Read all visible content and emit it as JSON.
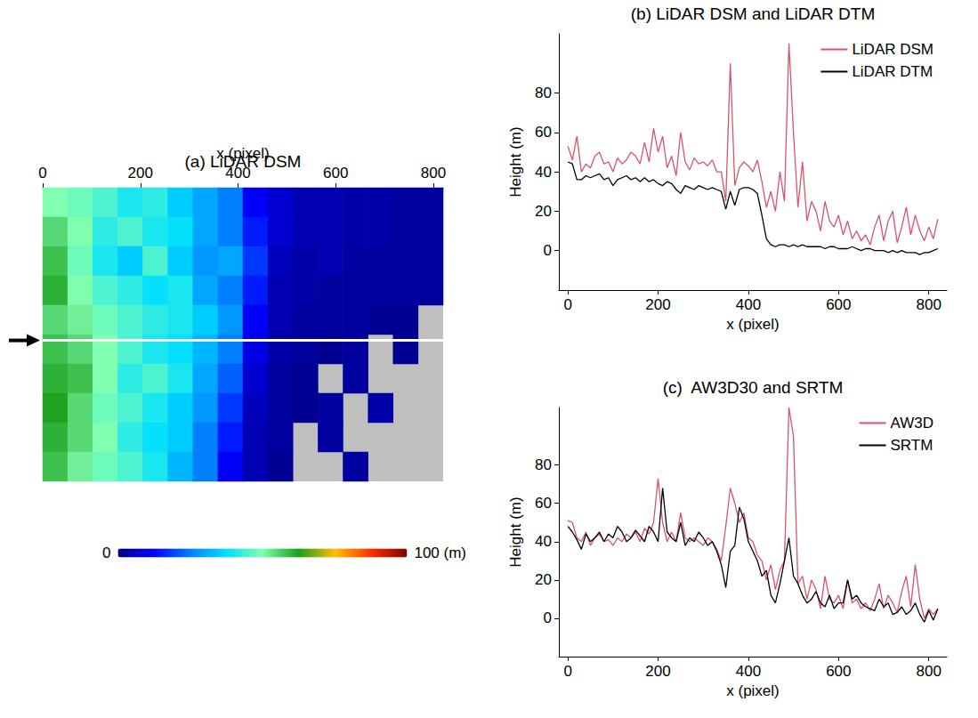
{
  "chart_data": [
    {
      "type": "heatmap",
      "title": "(a) LiDAR DSM",
      "xlabel": "x (pixel)",
      "xlim": [
        0,
        820
      ],
      "xticks": [
        0,
        200,
        400,
        600,
        800
      ],
      "tick_labels": "x",
      "color_ticks": [
        0,
        {
          "value": 100,
          "label": "100 (m)"
        }
      ],
      "cells": [
        [
          50,
          48,
          45,
          40,
          42,
          35,
          30,
          25,
          12,
          8,
          5,
          5,
          4,
          4,
          3,
          3
        ],
        [
          55,
          50,
          42,
          45,
          40,
          38,
          30,
          25,
          15,
          8,
          5,
          5,
          4,
          4,
          3,
          3
        ],
        [
          58,
          48,
          40,
          35,
          45,
          35,
          28,
          30,
          18,
          6,
          4,
          5,
          3,
          3,
          3,
          3
        ],
        [
          60,
          50,
          45,
          42,
          38,
          40,
          30,
          25,
          15,
          5,
          4,
          3,
          3,
          3,
          3,
          3
        ],
        [
          55,
          52,
          48,
          45,
          42,
          40,
          35,
          28,
          12,
          5,
          3,
          3,
          3,
          2,
          2,
          null
        ],
        [
          58,
          55,
          50,
          45,
          40,
          38,
          32,
          25,
          10,
          4,
          3,
          2,
          3,
          null,
          2,
          null
        ],
        [
          60,
          58,
          50,
          42,
          45,
          40,
          30,
          22,
          8,
          3,
          2,
          null,
          3,
          null,
          null,
          null
        ],
        [
          62,
          55,
          48,
          45,
          40,
          35,
          28,
          18,
          6,
          3,
          2,
          3,
          null,
          4,
          null,
          null
        ],
        [
          60,
          55,
          50,
          42,
          38,
          35,
          25,
          15,
          5,
          3,
          null,
          3,
          null,
          null,
          null,
          null
        ],
        [
          58,
          52,
          48,
          45,
          40,
          32,
          25,
          12,
          5,
          2,
          null,
          null,
          3,
          null,
          null,
          null
        ]
      ]
    },
    {
      "type": "line",
      "title": "(b) LiDAR DSM and LiDAR DTM",
      "xlabel": "x (pixel)",
      "ylabel": "Height (m)",
      "xlim": [
        -20,
        840
      ],
      "ylim": [
        -20,
        110
      ],
      "xticks": [
        0,
        200,
        400,
        600,
        800
      ],
      "yticks": [
        0,
        20,
        40,
        60,
        80
      ],
      "legend": "top-right",
      "x": [
        0,
        10,
        20,
        30,
        40,
        50,
        60,
        70,
        80,
        90,
        100,
        110,
        120,
        130,
        140,
        150,
        160,
        170,
        180,
        190,
        200,
        210,
        220,
        230,
        240,
        250,
        260,
        270,
        280,
        290,
        300,
        310,
        320,
        330,
        340,
        350,
        360,
        370,
        380,
        390,
        400,
        410,
        420,
        430,
        440,
        450,
        460,
        470,
        480,
        490,
        500,
        510,
        520,
        530,
        540,
        550,
        560,
        570,
        580,
        590,
        600,
        610,
        620,
        630,
        640,
        650,
        660,
        670,
        680,
        690,
        700,
        710,
        720,
        730,
        740,
        750,
        760,
        770,
        780,
        790,
        800,
        810,
        820
      ],
      "series": [
        {
          "name": "LiDAR DSM",
          "color": "#d9536a",
          "values": [
            53,
            46,
            58,
            40,
            44,
            42,
            48,
            50,
            44,
            45,
            40,
            47,
            44,
            46,
            50,
            48,
            44,
            55,
            45,
            62,
            50,
            58,
            42,
            48,
            38,
            60,
            45,
            41,
            47,
            44,
            45,
            43,
            46,
            40,
            40,
            25,
            95,
            33,
            42,
            45,
            43,
            40,
            46,
            35,
            22,
            30,
            20,
            40,
            25,
            105,
            60,
            22,
            45,
            15,
            25,
            20,
            10,
            25,
            15,
            12,
            18,
            8,
            15,
            6,
            10,
            5,
            8,
            3,
            12,
            18,
            5,
            15,
            20,
            4,
            12,
            22,
            8,
            18,
            10,
            5,
            12,
            6,
            16
          ]
        },
        {
          "name": "LiDAR DTM",
          "color": "#000000",
          "values": [
            45,
            44,
            36,
            36,
            38,
            37,
            38,
            39,
            36,
            37,
            33,
            36,
            37,
            38,
            36,
            37,
            35,
            37,
            35,
            36,
            34,
            33,
            35,
            34,
            31,
            29,
            33,
            32,
            31,
            33,
            32,
            31,
            32,
            31,
            30,
            21,
            30,
            23,
            31,
            32,
            32,
            31,
            29,
            18,
            6,
            3,
            2,
            3,
            3,
            2,
            3,
            2,
            3,
            2,
            2,
            2,
            2,
            1,
            2,
            2,
            1,
            1,
            1,
            2,
            1,
            0,
            1,
            1,
            0,
            0,
            0,
            -1,
            0,
            -1,
            0,
            -1,
            -1,
            -1,
            -2,
            -1,
            -1,
            0,
            1
          ]
        }
      ]
    },
    {
      "type": "line",
      "title": "(c)  AW3D30 and SRTM",
      "xlabel": "x (pixel)",
      "ylabel": "Height (m)",
      "xlim": [
        -20,
        840
      ],
      "ylim": [
        -20,
        110
      ],
      "xticks": [
        0,
        200,
        400,
        600,
        800
      ],
      "yticks": [
        0,
        20,
        40,
        60,
        80
      ],
      "legend": "top-right",
      "x": [
        0,
        10,
        20,
        30,
        40,
        50,
        60,
        70,
        80,
        90,
        100,
        110,
        120,
        130,
        140,
        150,
        160,
        170,
        180,
        190,
        200,
        210,
        220,
        230,
        240,
        250,
        260,
        270,
        280,
        290,
        300,
        310,
        320,
        330,
        340,
        350,
        360,
        370,
        380,
        390,
        400,
        410,
        420,
        430,
        440,
        450,
        460,
        470,
        480,
        490,
        500,
        510,
        520,
        530,
        540,
        550,
        560,
        570,
        580,
        590,
        600,
        610,
        620,
        630,
        640,
        650,
        660,
        670,
        680,
        690,
        700,
        710,
        720,
        730,
        740,
        750,
        760,
        770,
        780,
        790,
        800,
        810,
        820
      ],
      "series": [
        {
          "name": "AW3D",
          "color": "#d9536a",
          "values": [
            51,
            50,
            42,
            40,
            45,
            38,
            42,
            44,
            40,
            41,
            38,
            42,
            40,
            44,
            42,
            45,
            40,
            47,
            44,
            50,
            73,
            50,
            40,
            45,
            40,
            55,
            42,
            40,
            42,
            40,
            38,
            42,
            40,
            36,
            30,
            48,
            68,
            60,
            50,
            55,
            42,
            40,
            33,
            30,
            20,
            28,
            15,
            25,
            30,
            110,
            95,
            18,
            22,
            10,
            20,
            15,
            5,
            22,
            10,
            8,
            12,
            5,
            20,
            8,
            10,
            5,
            8,
            4,
            10,
            18,
            5,
            12,
            8,
            3,
            14,
            22,
            6,
            28,
            10,
            0,
            5,
            2,
            5
          ]
        },
        {
          "name": "SRTM",
          "color": "#000000",
          "values": [
            48,
            45,
            41,
            36,
            44,
            40,
            42,
            45,
            40,
            44,
            42,
            48,
            45,
            40,
            42,
            46,
            43,
            40,
            48,
            45,
            40,
            68,
            45,
            42,
            40,
            50,
            38,
            42,
            40,
            45,
            42,
            38,
            40,
            35,
            28,
            16,
            35,
            38,
            58,
            52,
            40,
            35,
            30,
            22,
            25,
            12,
            8,
            18,
            30,
            42,
            22,
            18,
            12,
            8,
            10,
            14,
            8,
            6,
            12,
            5,
            8,
            8,
            20,
            10,
            12,
            8,
            6,
            5,
            4,
            10,
            6,
            8,
            2,
            3,
            6,
            2,
            4,
            8,
            2,
            -2,
            4,
            -1,
            5
          ]
        }
      ]
    }
  ]
}
